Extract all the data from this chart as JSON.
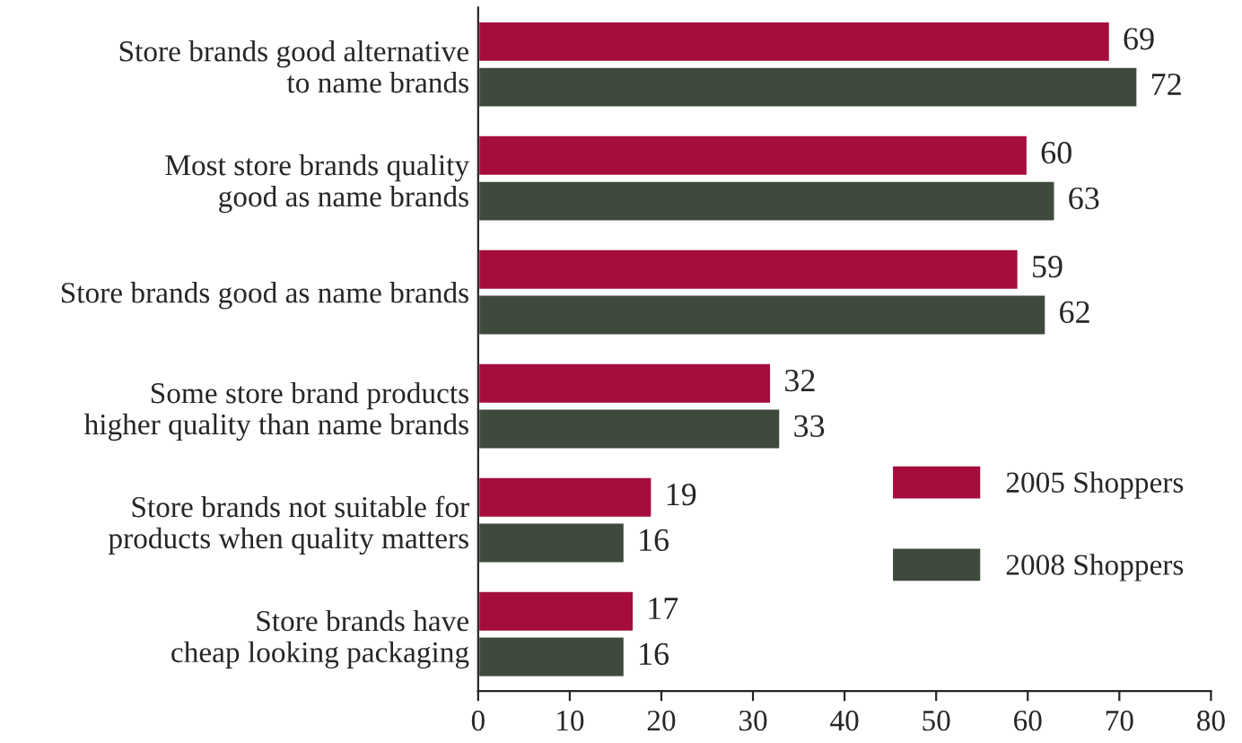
{
  "chart_data": {
    "type": "bar",
    "orientation": "horizontal",
    "categories": [
      "Store brands good alternative\nto name brands",
      "Most store brands quality\ngood as name brands",
      "Store brands good as name brands",
      "Some store brand products\nhigher quality than name brands",
      "Store brands not suitable for\nproducts when quality matters",
      "Store brands have\ncheap looking packaging"
    ],
    "series": [
      {
        "name": "2005 Shoppers",
        "color": "#a50d3c",
        "values": [
          69,
          60,
          59,
          32,
          19,
          17
        ]
      },
      {
        "name": "2008 Shoppers",
        "color": "#3e4a3c",
        "values": [
          72,
          63,
          62,
          33,
          16,
          16
        ]
      }
    ],
    "xlim": [
      0,
      80
    ],
    "xticks": [
      0,
      10,
      20,
      30,
      40,
      50,
      60,
      70,
      80
    ],
    "data_labels": true,
    "legend": "bottom right",
    "grid": false
  }
}
